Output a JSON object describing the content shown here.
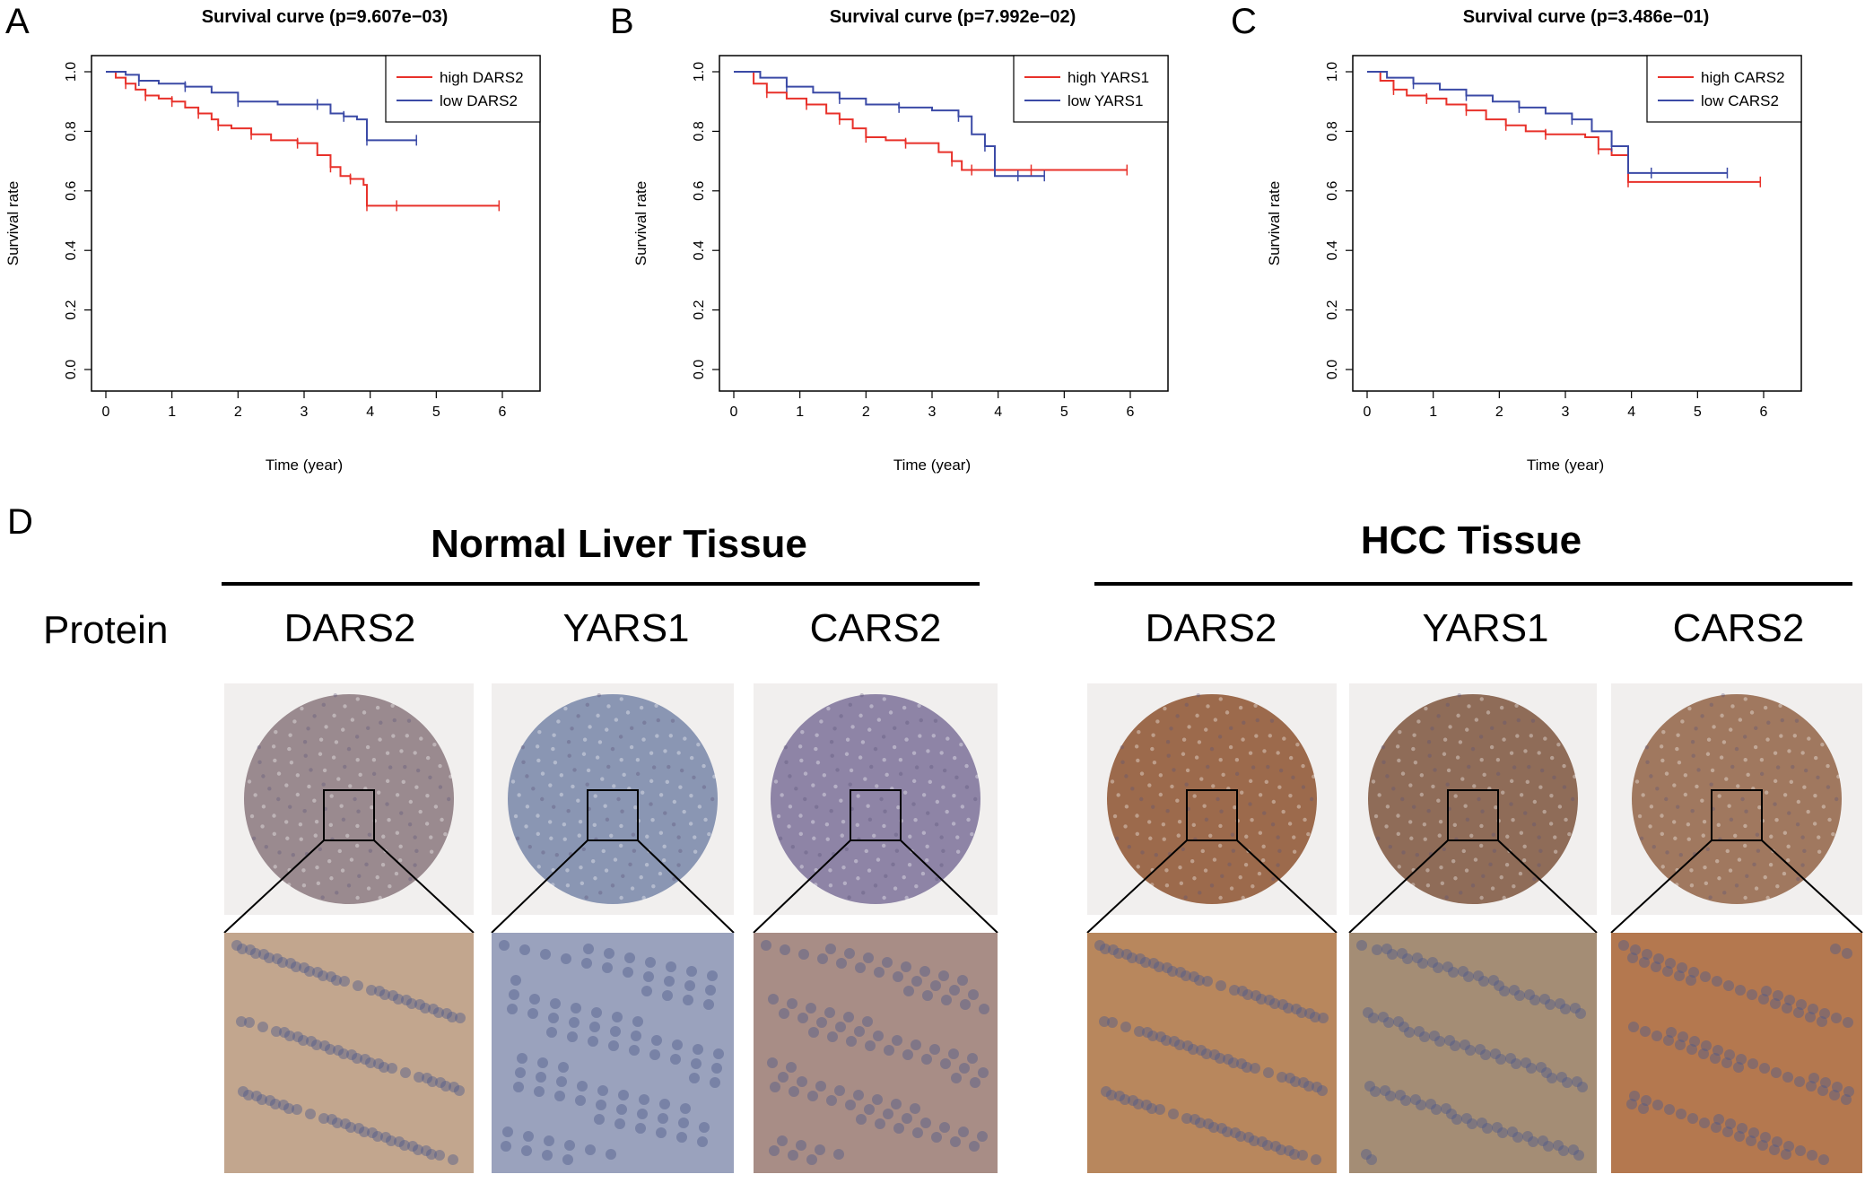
{
  "chart_data": [
    {
      "panel": "A",
      "type": "line",
      "title": "Survival curve (p=9.607e−03)",
      "xlabel": "Time (year)",
      "ylabel": "Survival rate",
      "xlim": [
        0,
        6
      ],
      "ylim": [
        0,
        1
      ],
      "xticks": [
        "0",
        "1",
        "2",
        "3",
        "4",
        "5",
        "6"
      ],
      "yticks": [
        "0.0",
        "0.2",
        "0.4",
        "0.6",
        "0.8",
        "1.0"
      ],
      "legend_position": "top-right",
      "series": [
        {
          "name": "high DARS2",
          "color": "#e8312a",
          "x": [
            0,
            0.15,
            0.3,
            0.45,
            0.6,
            0.8,
            1.0,
            1.2,
            1.4,
            1.6,
            1.7,
            1.9,
            2.2,
            2.5,
            2.9,
            3.2,
            3.4,
            3.55,
            3.7,
            3.9,
            3.95,
            4.1,
            4.4,
            5.4,
            5.95
          ],
          "y": [
            1.0,
            0.98,
            0.96,
            0.94,
            0.92,
            0.91,
            0.9,
            0.88,
            0.86,
            0.84,
            0.82,
            0.81,
            0.79,
            0.77,
            0.76,
            0.72,
            0.68,
            0.65,
            0.64,
            0.62,
            0.55,
            0.55,
            0.55,
            0.55,
            0.55
          ]
        },
        {
          "name": "low DARS2",
          "color": "#3b4aa6",
          "x": [
            0,
            0.3,
            0.5,
            0.8,
            1.2,
            1.6,
            2.0,
            2.6,
            3.2,
            3.4,
            3.6,
            3.8,
            3.95,
            4.2,
            4.7
          ],
          "y": [
            1.0,
            0.99,
            0.97,
            0.96,
            0.95,
            0.93,
            0.9,
            0.89,
            0.89,
            0.86,
            0.85,
            0.84,
            0.77,
            0.77,
            0.77
          ]
        }
      ]
    },
    {
      "panel": "B",
      "type": "line",
      "title": "Survival curve (p=7.992e−02)",
      "xlabel": "Time (year)",
      "ylabel": "Survival rate",
      "xlim": [
        0,
        6
      ],
      "ylim": [
        0,
        1
      ],
      "xticks": [
        "0",
        "1",
        "2",
        "3",
        "4",
        "5",
        "6"
      ],
      "yticks": [
        "0.0",
        "0.2",
        "0.4",
        "0.6",
        "0.8",
        "1.0"
      ],
      "legend_position": "top-right",
      "series": [
        {
          "name": "high YARS1",
          "color": "#e8312a",
          "x": [
            0,
            0.3,
            0.5,
            0.8,
            1.1,
            1.4,
            1.6,
            1.8,
            2.0,
            2.3,
            2.6,
            3.1,
            3.3,
            3.45,
            3.6,
            4.0,
            4.5,
            5.95
          ],
          "y": [
            1.0,
            0.96,
            0.93,
            0.91,
            0.89,
            0.86,
            0.84,
            0.81,
            0.78,
            0.77,
            0.76,
            0.73,
            0.7,
            0.67,
            0.67,
            0.67,
            0.67,
            0.67
          ]
        },
        {
          "name": "low YARS1",
          "color": "#3b4aa6",
          "x": [
            0,
            0.4,
            0.8,
            1.2,
            1.6,
            2.0,
            2.5,
            3.0,
            3.4,
            3.6,
            3.8,
            3.95,
            4.3,
            4.7
          ],
          "y": [
            1.0,
            0.98,
            0.95,
            0.93,
            0.91,
            0.89,
            0.88,
            0.87,
            0.85,
            0.79,
            0.75,
            0.65,
            0.65,
            0.65
          ]
        }
      ]
    },
    {
      "panel": "C",
      "type": "line",
      "title": "Survival curve (p=3.486e−01)",
      "xlabel": "Time (year)",
      "ylabel": "Survival rate",
      "xlim": [
        0,
        6
      ],
      "ylim": [
        0,
        1
      ],
      "xticks": [
        "0",
        "1",
        "2",
        "3",
        "4",
        "5",
        "6"
      ],
      "yticks": [
        "0.0",
        "0.2",
        "0.4",
        "0.6",
        "0.8",
        "1.0"
      ],
      "legend_position": "top-right",
      "series": [
        {
          "name": "high CARS2",
          "color": "#e8312a",
          "x": [
            0,
            0.2,
            0.4,
            0.6,
            0.9,
            1.2,
            1.5,
            1.8,
            2.1,
            2.4,
            2.7,
            3.3,
            3.5,
            3.7,
            3.95,
            4.3,
            5.95
          ],
          "y": [
            1.0,
            0.97,
            0.94,
            0.92,
            0.91,
            0.89,
            0.87,
            0.84,
            0.82,
            0.8,
            0.79,
            0.78,
            0.74,
            0.72,
            0.63,
            0.63,
            0.63
          ]
        },
        {
          "name": "low CARS2",
          "color": "#3b4aa6",
          "x": [
            0,
            0.3,
            0.7,
            1.1,
            1.5,
            1.9,
            2.3,
            2.7,
            3.1,
            3.4,
            3.7,
            3.95,
            4.3,
            5.45
          ],
          "y": [
            1.0,
            0.98,
            0.96,
            0.94,
            0.92,
            0.9,
            0.88,
            0.86,
            0.84,
            0.8,
            0.75,
            0.66,
            0.66,
            0.66
          ]
        }
      ]
    }
  ],
  "panel_d": {
    "letter": "D",
    "row_label": "Protein",
    "groups": [
      {
        "title": "Normal Liver Tissue",
        "genes": [
          "DARS2",
          "YARS1",
          "CARS2"
        ]
      },
      {
        "title": "HCC Tissue",
        "genes": [
          "DARS2",
          "YARS1",
          "CARS2"
        ]
      }
    ],
    "tile_colors": {
      "normal_core": [
        "#9a8a8f",
        "#8a96b3",
        "#8e84a6"
      ],
      "normal_zoom": [
        "#c2a68e",
        "#9aa2bd",
        "#a88d86"
      ],
      "hcc_core": [
        "#9c6a4c",
        "#8f6c58",
        "#a0785f"
      ],
      "hcc_zoom": [
        "#b8875d",
        "#a48d75",
        "#b4784f"
      ]
    }
  }
}
